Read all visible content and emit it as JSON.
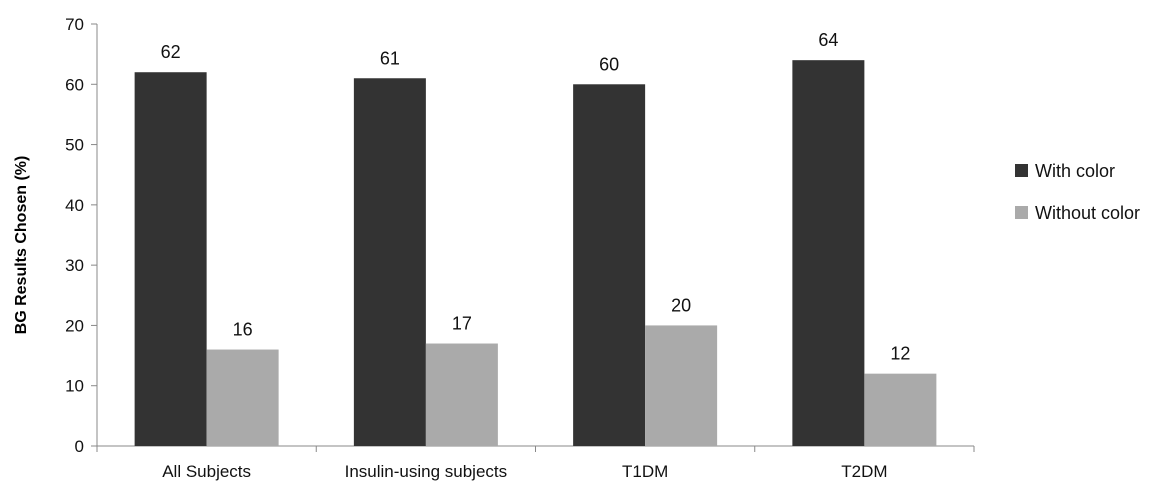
{
  "chart_data": {
    "type": "bar",
    "title": "",
    "xlabel": "",
    "ylabel": "BG Results Chosen (%)",
    "ylim": [
      0,
      70
    ],
    "yticks": [
      0,
      10,
      20,
      30,
      40,
      50,
      60,
      70
    ],
    "categories": [
      "All Subjects",
      "Insulin-using subjects",
      "T1DM",
      "T2DM"
    ],
    "series": [
      {
        "name": "With color",
        "values": [
          62,
          61,
          60,
          64
        ],
        "color": "#333333"
      },
      {
        "name": "Without color",
        "values": [
          16,
          17,
          20,
          12
        ],
        "color": "#aaaaaa"
      }
    ],
    "data_labels": true,
    "legend_position": "right",
    "grid": false
  }
}
